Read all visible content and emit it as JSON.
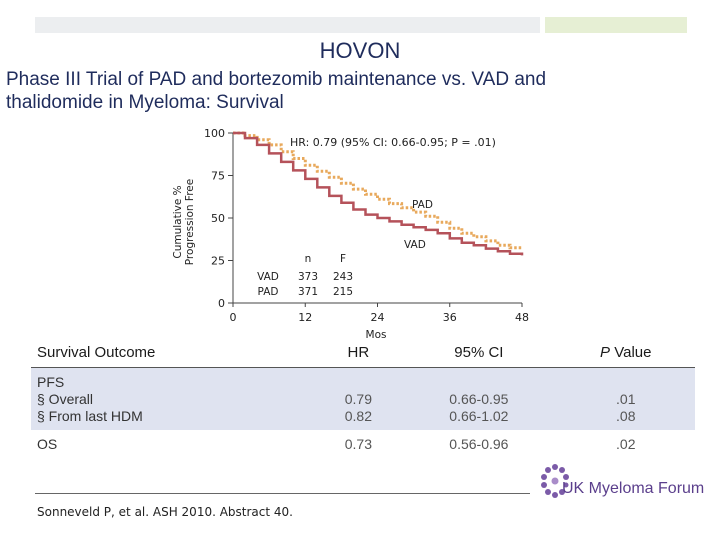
{
  "header": {
    "title": "HOVON",
    "subtitle_line1": "Phase III Trial of PAD and bortezomib maintenance vs. VAD and",
    "subtitle_line2": "thalidomide in Myeloma: Survival"
  },
  "chart_data": {
    "type": "line",
    "title": "HR: 0.79 (95% CI: 0.66-0.95; P = .01)",
    "ylabel": "Cumulative % Progression Free",
    "ylabel_line1": "Cumulative %",
    "ylabel_line2": "Progression Free",
    "xlabel": "Mos",
    "xlim": [
      0,
      48
    ],
    "ylim": [
      0,
      100
    ],
    "x_ticks": [
      0,
      12,
      24,
      36,
      48
    ],
    "y_ticks": [
      0,
      25,
      50,
      75,
      100
    ],
    "series": [
      {
        "name": "PAD",
        "color": "#e8a95c",
        "style": "dotted",
        "x": [
          0,
          2,
          4,
          6,
          8,
          10,
          12,
          14,
          16,
          18,
          20,
          22,
          24,
          26,
          28,
          30,
          32,
          34,
          36,
          38,
          40,
          42,
          44,
          46,
          48
        ],
        "y": [
          100,
          98.5,
          96,
          93,
          89,
          85,
          81,
          77.5,
          74,
          70.5,
          67,
          64,
          61,
          58.5,
          56,
          53.5,
          51,
          47.5,
          44,
          41,
          39,
          36.5,
          34,
          32.5,
          32
        ]
      },
      {
        "name": "VAD",
        "color": "#b5525a",
        "style": "solid",
        "x": [
          0,
          2,
          4,
          6,
          8,
          10,
          12,
          14,
          16,
          18,
          20,
          22,
          24,
          26,
          28,
          30,
          32,
          34,
          36,
          38,
          40,
          42,
          44,
          46,
          48
        ],
        "y": [
          100,
          97,
          93,
          88,
          83,
          78,
          73,
          68,
          63,
          59,
          55,
          52,
          50,
          48,
          46,
          44.5,
          43,
          41,
          38,
          35.5,
          34,
          32,
          30.5,
          29,
          28
        ]
      }
    ],
    "labels": {
      "pad": "PAD",
      "vad": "VAD"
    },
    "at_risk": {
      "col_n": "n",
      "col_f": "F",
      "rows": [
        {
          "arm": "VAD",
          "n": "373",
          "f": "243"
        },
        {
          "arm": "PAD",
          "n": "371",
          "f": "215"
        }
      ]
    }
  },
  "table": {
    "headers": {
      "outcome": "Survival Outcome",
      "hr": "HR",
      "ci": "95% CI",
      "p_italic": "P",
      "p_rest": " Value"
    },
    "pfs": {
      "label": "PFS",
      "overall": "§ Overall",
      "from_hdm": "§ From last HDM",
      "hr_overall": "0.79",
      "hr_hdm": "0.82",
      "ci_overall": "0.66-0.95",
      "ci_hdm": "0.66-1.02",
      "p_overall": ".01",
      "p_hdm": ".08"
    },
    "os": {
      "label": "OS",
      "hr": "0.73",
      "ci": "0.56-0.96",
      "p": ".02"
    }
  },
  "footer": {
    "citation": "Sonneveld P, et al. ASH 2010. Abstract 40.",
    "logo": "UK Myeloma Forum"
  }
}
